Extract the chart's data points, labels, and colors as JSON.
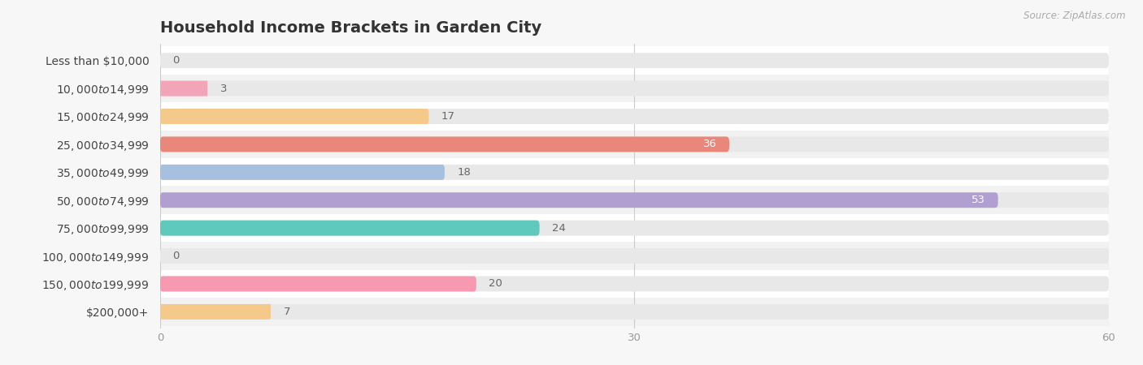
{
  "title": "Household Income Brackets in Garden City",
  "source": "Source: ZipAtlas.com",
  "categories": [
    "Less than $10,000",
    "$10,000 to $14,999",
    "$15,000 to $24,999",
    "$25,000 to $34,999",
    "$35,000 to $49,999",
    "$50,000 to $74,999",
    "$75,000 to $99,999",
    "$100,000 to $149,999",
    "$150,000 to $199,999",
    "$200,000+"
  ],
  "values": [
    0,
    3,
    17,
    36,
    18,
    53,
    24,
    0,
    20,
    7
  ],
  "bar_colors": [
    "#b0acd8",
    "#f2a5b8",
    "#f5c98a",
    "#e8877a",
    "#a8c0e0",
    "#b09fd0",
    "#5ec9bc",
    "#b0acd8",
    "#f799b0",
    "#f5c98a"
  ],
  "background_color": "#f7f7f7",
  "row_colors": [
    "#ffffff",
    "#f2f2f2"
  ],
  "bar_bg_color": "#e8e8e8",
  "xlim": [
    0,
    60
  ],
  "xticks": [
    0,
    30,
    60
  ],
  "title_fontsize": 14,
  "label_fontsize": 10,
  "value_fontsize": 9.5,
  "bar_height": 0.55,
  "value_label_inside_threshold": 28
}
